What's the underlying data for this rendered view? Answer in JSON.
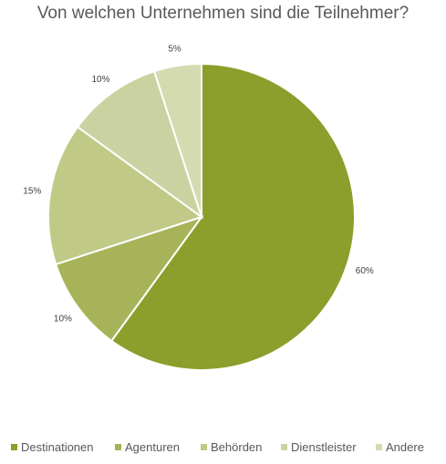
{
  "chart_data": {
    "type": "pie",
    "title": "Von welchen Unternehmen sind die Teilnehmer?",
    "categories": [
      "Destinationen",
      "Agenturen",
      "Behörden",
      "Dienstleister",
      "Andere"
    ],
    "values": [
      60,
      10,
      15,
      10,
      5
    ],
    "data_labels": [
      "60%",
      "10%",
      "15%",
      "10%",
      "5%"
    ],
    "colors": [
      "#8c9e2b",
      "#a7b358",
      "#c1c987",
      "#cbd2a2",
      "#d4dbb0"
    ],
    "legend_position": "bottom",
    "start_angle": "12 o'clock",
    "direction": "clockwise"
  }
}
